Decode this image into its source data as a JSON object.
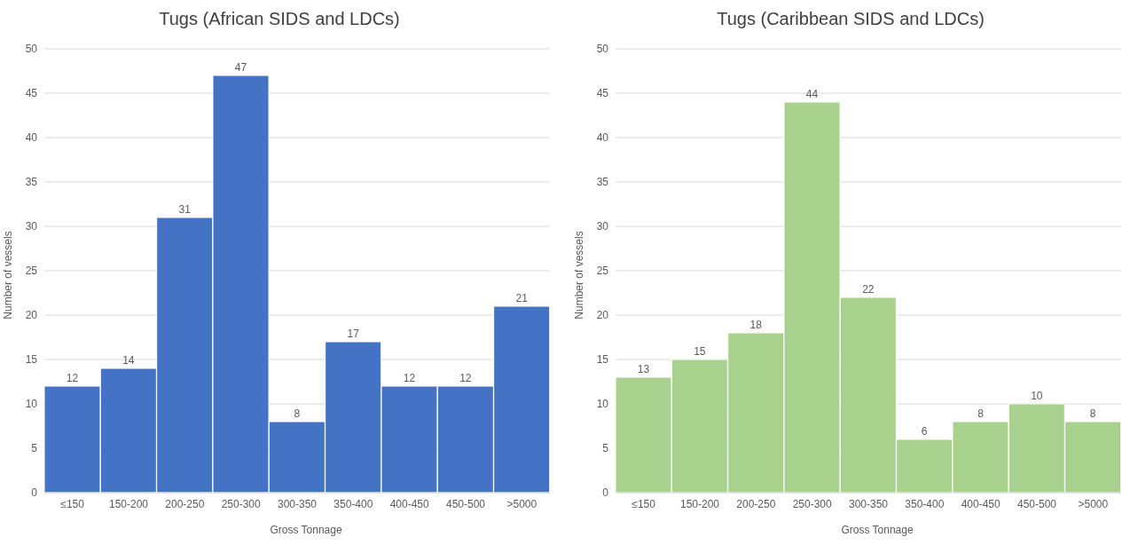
{
  "chart_data": [
    {
      "type": "bar",
      "title": "Tugs (African SIDS and LDCs)",
      "xlabel": "Gross Tonnage",
      "ylabel": "Number of vessels",
      "categories": [
        "≤150",
        "150-200",
        "200-250",
        "250-300",
        "300-350",
        "350-400",
        "400-450",
        "450-500",
        ">5000"
      ],
      "values": [
        12,
        14,
        31,
        47,
        8,
        17,
        12,
        12,
        21
      ],
      "color": "#4472c4",
      "ylim": [
        0,
        50
      ],
      "yticks": [
        0,
        5,
        10,
        15,
        20,
        25,
        30,
        35,
        40,
        45,
        50
      ],
      "grid": "y",
      "data_labels": true
    },
    {
      "type": "bar",
      "title": "Tugs (Caribbean SIDS and LDCs)",
      "xlabel": "Gross Tonnage",
      "ylabel": "Number of vessels",
      "categories": [
        "≤150",
        "150-200",
        "200-250",
        "250-300",
        "300-350",
        "350-400",
        "400-450",
        "450-500",
        ">5000"
      ],
      "values": [
        13,
        15,
        18,
        44,
        22,
        6,
        8,
        10,
        8
      ],
      "color": "#a9d18e",
      "ylim": [
        0,
        50
      ],
      "yticks": [
        0,
        5,
        10,
        15,
        20,
        25,
        30,
        35,
        40,
        45,
        50
      ],
      "grid": "y",
      "data_labels": true
    }
  ]
}
